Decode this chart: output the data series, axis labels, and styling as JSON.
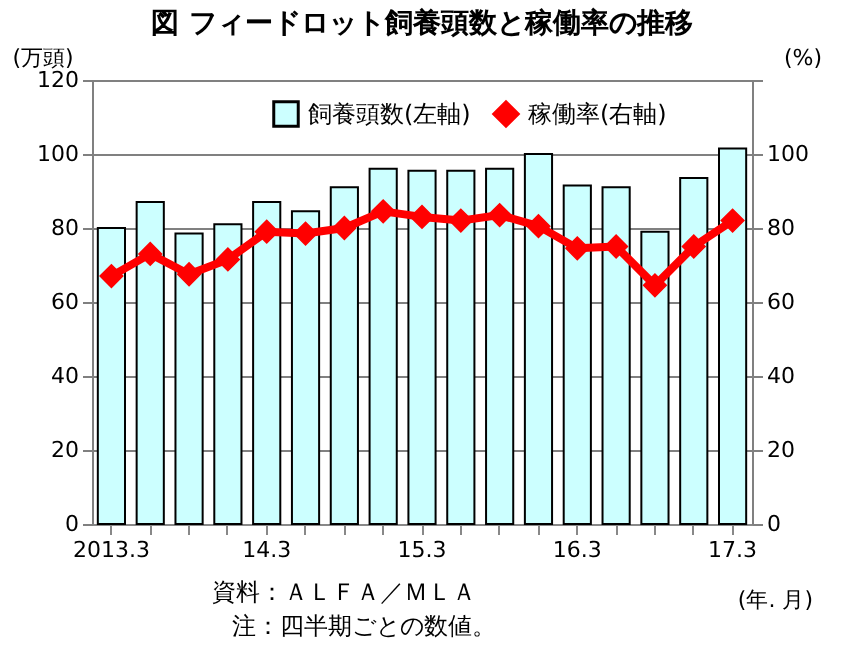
{
  "chart_data": {
    "type": "bar",
    "title": "図 フィードロット飼養頭数と稼働率の推移",
    "ylabel": "(万頭)",
    "y2label": "(%)",
    "xlabel": "(年. 月)",
    "categories": [
      "2013.3",
      null,
      null,
      null,
      "14.3",
      null,
      null,
      null,
      "15.3",
      null,
      null,
      null,
      "16.3",
      null,
      null,
      null,
      "17.3"
    ],
    "series": [
      {
        "name": "飼養頭数(左軸)",
        "color": "#ccffff",
        "values": [
          80,
          87,
          78.5,
          81,
          87,
          84.5,
          91,
          96,
          95.5,
          95.5,
          96,
          100,
          91.5,
          91,
          79,
          93.5,
          101.5
        ]
      },
      {
        "name": "稼働率(右軸)",
        "type": "line",
        "axis": "y2",
        "color": "#ff0000",
        "marker": "diamond",
        "values": [
          67,
          73,
          67.5,
          71.5,
          79,
          78.5,
          80,
          84.5,
          83,
          82,
          83.5,
          80.5,
          74.5,
          75,
          64.5,
          75,
          82
        ]
      }
    ],
    "ylim": [
      0,
      120
    ],
    "yticks": [
      0,
      20,
      40,
      60,
      80,
      100,
      120
    ],
    "y2lim": [
      0,
      120
    ],
    "y2ticks": [
      0,
      20,
      40,
      60,
      80,
      100,
      {
        "value": 120,
        "label": null
      }
    ],
    "grid": "y",
    "legend": "top",
    "annotations": [
      "資料：ＡＬＦＡ／ＭＬＡ",
      "注：四半期ごとの数値。"
    ]
  }
}
